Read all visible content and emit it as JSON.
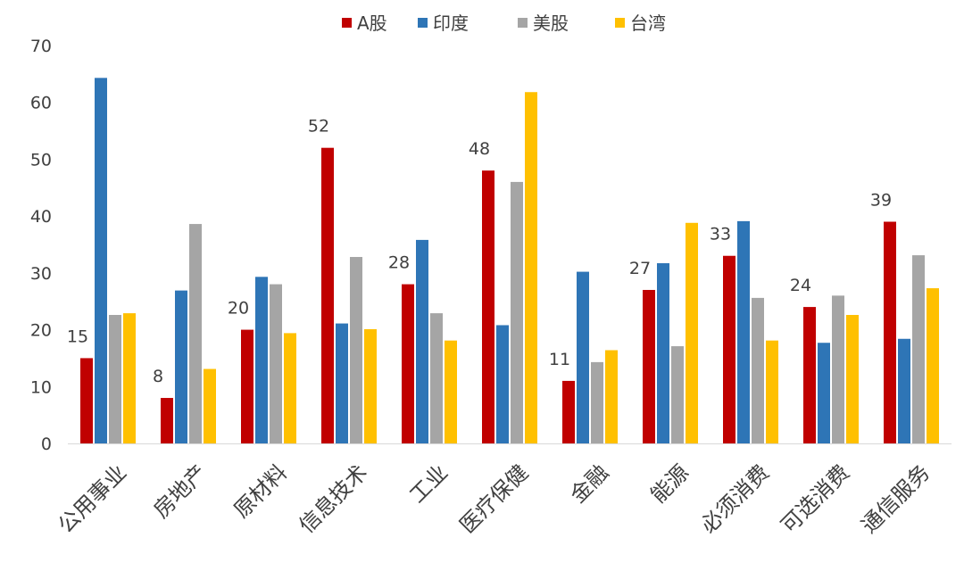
{
  "chart_data": {
    "type": "bar",
    "categories": [
      "公用事业",
      "房地产",
      "原材料",
      "信息技术",
      "工业",
      "医疗保健",
      "金融",
      "能源",
      "必须消费",
      "可选消费",
      "通信服务"
    ],
    "series": [
      {
        "name": "A股",
        "color": "#c00000",
        "values": [
          15,
          8,
          20,
          52,
          28,
          48,
          11,
          27,
          33,
          24,
          39
        ]
      },
      {
        "name": "印度",
        "color": "#2e75b6",
        "values": [
          64.3,
          26.9,
          29.3,
          21.1,
          35.8,
          20.8,
          30.2,
          31.7,
          39.1,
          17.7,
          18.4
        ]
      },
      {
        "name": "美股",
        "color": "#a5a5a5",
        "values": [
          22.6,
          38.6,
          28.0,
          32.8,
          22.9,
          46.0,
          14.3,
          17.1,
          25.6,
          26.0,
          33.1
        ]
      },
      {
        "name": "台湾",
        "color": "#ffc000",
        "values": [
          22.9,
          13.1,
          19.4,
          20.1,
          18.1,
          61.8,
          16.4,
          38.8,
          18.1,
          22.6,
          27.3
        ]
      }
    ],
    "data_labels": [
      "15",
      "8",
      "20",
      "52",
      "28",
      "48",
      "11",
      "27",
      "33",
      "24",
      "39"
    ],
    "ylim": [
      0,
      70
    ],
    "yticks": [
      0,
      10,
      20,
      30,
      40,
      50,
      60,
      70
    ],
    "ytick_labels": [
      "0",
      "10",
      "20",
      "30",
      "40",
      "50",
      "60",
      "70"
    ],
    "grid": false,
    "legend_position": "top"
  }
}
